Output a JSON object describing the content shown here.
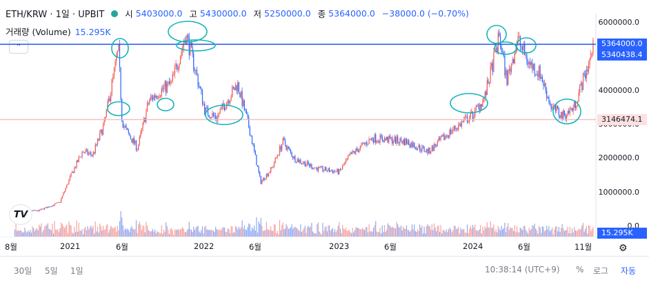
{
  "header": {
    "symbol": "ETH/KRW · 1일 · UPBIT",
    "open_label": "시",
    "open": "5403000.0",
    "high_label": "고",
    "high": "5430000.0",
    "low_label": "저",
    "low": "5250000.0",
    "close_label": "종",
    "close": "5364000.0",
    "change": "−38000.0 (−0.70%)"
  },
  "volume": {
    "label": "거래량 (Volume)",
    "value": "15.295K"
  },
  "price_tags": {
    "last": "5364000.0",
    "line2": "5340438.4",
    "pink": "3146474.1",
    "volume": "15.295K"
  },
  "colors": {
    "up": "#ef5350",
    "down": "#2962ff",
    "hline": "#1e53e5",
    "pink_line": "#f5b7b7",
    "annot": "#12b3b8"
  },
  "chart_data": {
    "type": "candlestick",
    "y_ticks": [
      "6000000.0",
      "5000000.0",
      "4000000.0",
      "3000000.0",
      "2000000.0",
      "1000000.0",
      "0.0"
    ],
    "ylim": [
      0,
      6000000
    ],
    "x_ticks": [
      "8월",
      "2021",
      "6월",
      "2022",
      "6월",
      "2023",
      "6월",
      "2024",
      "6월",
      "11월"
    ],
    "keypoints": [
      [
        "2020-08",
        480000
      ],
      [
        "2020-10",
        450000
      ],
      [
        "2020-12",
        700000
      ],
      [
        "2021-01",
        1500000
      ],
      [
        "2021-02",
        2200000
      ],
      [
        "2021-03",
        2100000
      ],
      [
        "2021-04",
        3000000
      ],
      [
        "2021-05-10",
        5200000
      ],
      [
        "2021-05-20",
        3100000
      ],
      [
        "2021-06",
        2800000
      ],
      [
        "2021-07",
        2300000
      ],
      [
        "2021-08",
        3700000
      ],
      [
        "2021-09",
        4000000
      ],
      [
        "2021-10",
        4200000
      ],
      [
        "2021-11-10",
        5650000
      ],
      [
        "2021-12",
        4800000
      ],
      [
        "2022-01",
        3400000
      ],
      [
        "2022-02",
        3200000
      ],
      [
        "2022-03-30",
        4200000
      ],
      [
        "2022-05",
        2900000
      ],
      [
        "2022-06",
        1300000
      ],
      [
        "2022-07",
        1700000
      ],
      [
        "2022-08",
        2500000
      ],
      [
        "2022-09",
        2000000
      ],
      [
        "2022-11",
        1700000
      ],
      [
        "2023-01",
        1600000
      ],
      [
        "2023-02",
        2100000
      ],
      [
        "2023-04",
        2600000
      ],
      [
        "2023-07",
        2500000
      ],
      [
        "2023-09",
        2200000
      ],
      [
        "2023-11",
        2800000
      ],
      [
        "2024-01",
        3300000
      ],
      [
        "2024-02",
        3800000
      ],
      [
        "2024-03-12",
        5600000
      ],
      [
        "2024-04",
        4300000
      ],
      [
        "2024-05",
        5500000
      ],
      [
        "2024-06",
        4800000
      ],
      [
        "2024-07",
        4500000
      ],
      [
        "2024-08",
        3500000
      ],
      [
        "2024-09",
        3250000
      ],
      [
        "2024-10",
        3500000
      ],
      [
        "2024-11-10",
        4800000
      ],
      [
        "2024-11-25",
        5364000
      ]
    ]
  },
  "bottom": {
    "ranges": [
      "30일",
      "5일",
      "1일"
    ],
    "time": "10:38:14 (UTC+9)",
    "pct": "%",
    "log": "로그",
    "auto": "자동"
  }
}
